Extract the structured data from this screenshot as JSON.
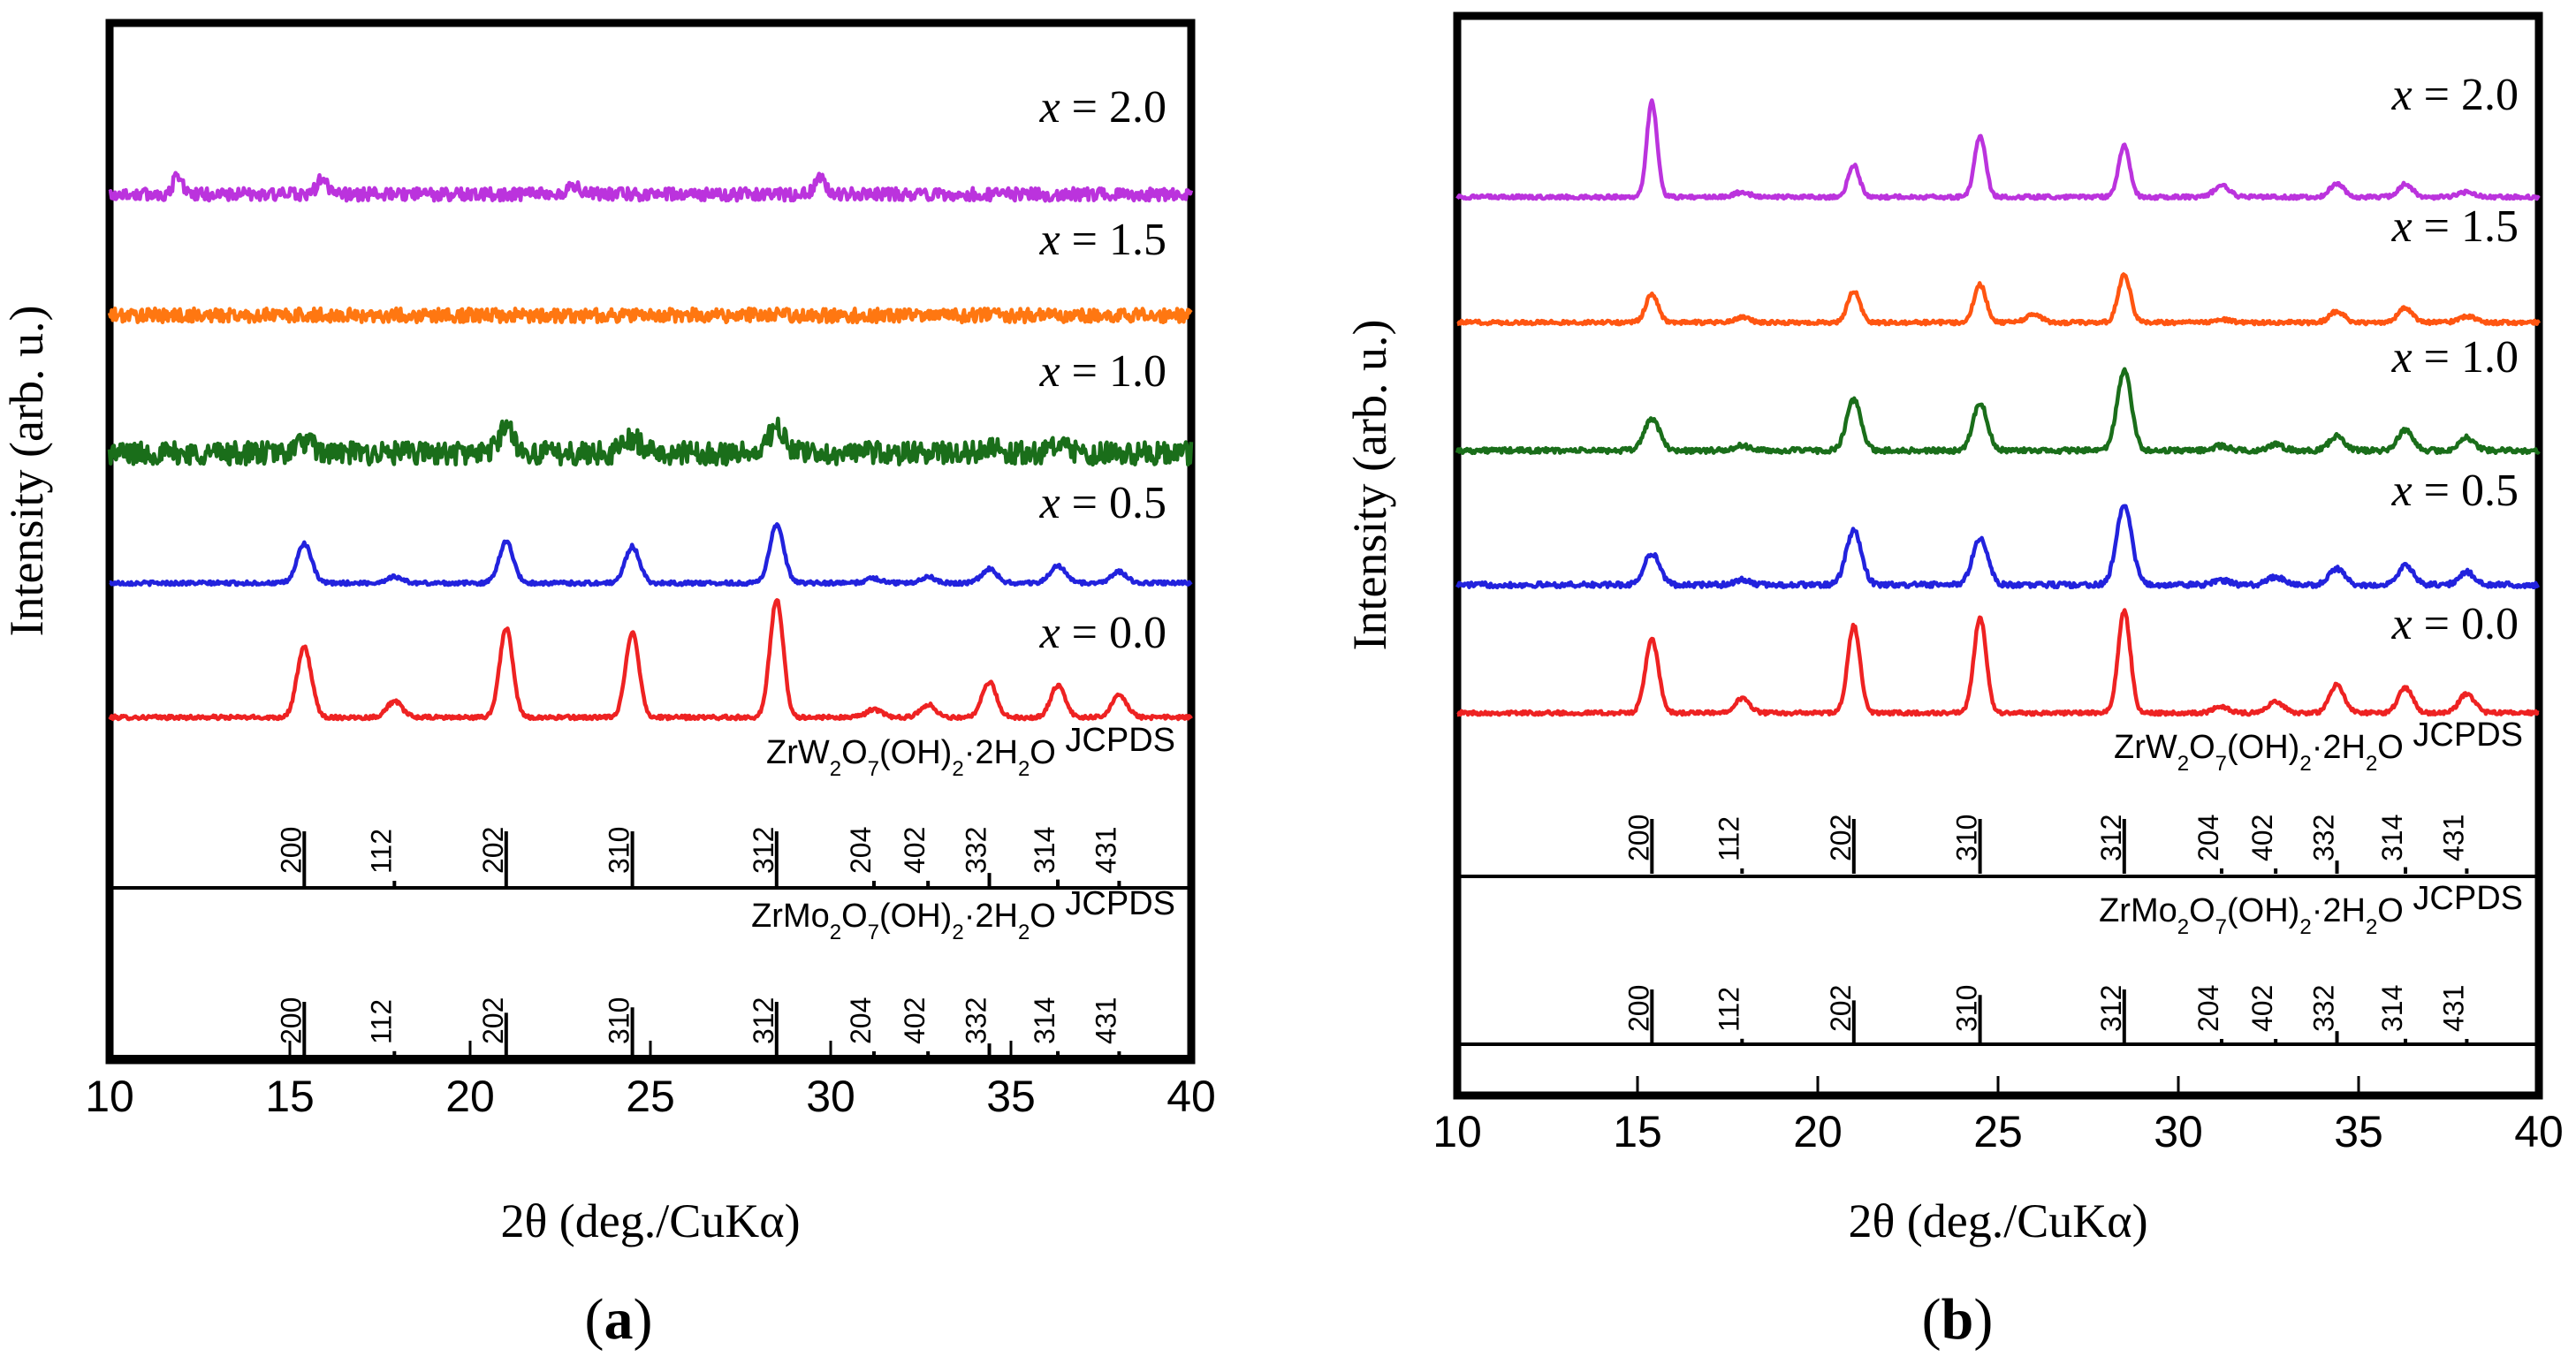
{
  "chart_data": [
    {
      "panel": "(a)",
      "type": "line",
      "xlabel": "2θ (deg./CuKα)",
      "ylabel": "Intensity (arb. u.)",
      "xlim": [
        10,
        40
      ],
      "xticks": [
        10,
        15,
        20,
        25,
        30,
        35,
        40
      ],
      "series": [
        {
          "name": "x = 0.0",
          "color": "#ee2222",
          "baseline": 0,
          "noise": 0.15,
          "peaks": [
            [
              15.4,
              4.4,
              0.28
            ],
            [
              17.9,
              1.0,
              0.3
            ],
            [
              21.0,
              5.6,
              0.26
            ],
            [
              24.5,
              5.4,
              0.26
            ],
            [
              28.5,
              7.4,
              0.26
            ],
            [
              31.2,
              0.5,
              0.3
            ],
            [
              32.7,
              0.8,
              0.3
            ],
            [
              34.4,
              2.2,
              0.28
            ],
            [
              36.3,
              2.0,
              0.28
            ],
            [
              38.0,
              1.4,
              0.3
            ]
          ]
        },
        {
          "name": "x = 0.5",
          "color": "#2222dd",
          "baseline": 1,
          "noise": 0.15,
          "peaks": [
            [
              15.4,
              2.5,
              0.28
            ],
            [
              17.9,
              0.4,
              0.3
            ],
            [
              21.0,
              2.6,
              0.28
            ],
            [
              24.5,
              2.3,
              0.28
            ],
            [
              28.5,
              3.6,
              0.28
            ],
            [
              31.2,
              0.3,
              0.3
            ],
            [
              32.7,
              0.4,
              0.3
            ],
            [
              34.4,
              0.9,
              0.3
            ],
            [
              36.3,
              1.1,
              0.3
            ],
            [
              38.0,
              0.7,
              0.3
            ]
          ]
        },
        {
          "name": "x = 1.0",
          "color": "#1a6e1a",
          "baseline": 2,
          "noise": 0.9,
          "peaks": [
            [
              15.4,
              0.7,
              0.35
            ],
            [
              21.0,
              1.6,
              0.3
            ],
            [
              24.5,
              0.9,
              0.35
            ],
            [
              28.5,
              1.6,
              0.3
            ],
            [
              34.4,
              0.5,
              0.35
            ],
            [
              36.3,
              0.4,
              0.35
            ]
          ]
        },
        {
          "name": "x = 1.5",
          "color": "#ff7711",
          "baseline": 3,
          "noise": 0.55,
          "peaks": []
        },
        {
          "name": "x = 2.0",
          "color": "#bb33dd",
          "baseline": 4,
          "noise": 0.5,
          "peaks": [
            [
              11.9,
              1.2,
              0.18
            ],
            [
              15.9,
              1.0,
              0.2
            ],
            [
              22.9,
              0.6,
              0.2
            ],
            [
              29.7,
              1.1,
              0.2
            ]
          ]
        }
      ],
      "reference_patterns": [
        {
          "title": "ZrW",
          "formula_tail": "JCPDS",
          "formula_parts": [
            "ZrW",
            "2",
            "O",
            "7",
            "(OH)",
            "2",
            "·2H",
            "2",
            "O"
          ],
          "lines": [
            {
              "hkl": "200",
              "pos": 15.4,
              "rel": 0.5
            },
            {
              "hkl": "112",
              "pos": 17.9,
              "rel": 0.04
            },
            {
              "hkl": "202",
              "pos": 21.0,
              "rel": 0.5
            },
            {
              "hkl": "310",
              "pos": 24.5,
              "rel": 0.5
            },
            {
              "hkl": "312",
              "pos": 28.5,
              "rel": 0.5
            },
            {
              "hkl": "204",
              "pos": 31.2,
              "rel": 0.04
            },
            {
              "hkl": "402",
              "pos": 32.7,
              "rel": 0.04
            },
            {
              "hkl": "332",
              "pos": 34.4,
              "rel": 0.12
            },
            {
              "hkl": "314",
              "pos": 36.3,
              "rel": 0.06
            },
            {
              "hkl": "431",
              "pos": 38.0,
              "rel": 0.04
            }
          ]
        },
        {
          "title": "ZrMo",
          "formula_tail": "JCPDS",
          "formula_parts": [
            "ZrMo",
            "2",
            "O",
            "7",
            "(OH)",
            "2",
            "·2H",
            "2",
            "O"
          ],
          "lines": [
            {
              "hkl": "200",
              "pos": 15.4,
              "rel": 0.5
            },
            {
              "hkl": "112",
              "pos": 17.9,
              "rel": 0.05
            },
            {
              "hkl": "202",
              "pos": 21.0,
              "rel": 0.4
            },
            {
              "hkl": "310",
              "pos": 24.5,
              "rel": 0.45
            },
            {
              "hkl": "312",
              "pos": 28.5,
              "rel": 0.5
            },
            {
              "hkl": "204",
              "pos": 31.2,
              "rel": 0.04
            },
            {
              "hkl": "402",
              "pos": 32.7,
              "rel": 0.04
            },
            {
              "hkl": "332",
              "pos": 34.4,
              "rel": 0.12
            },
            {
              "hkl": "314",
              "pos": 36.3,
              "rel": 0.05
            },
            {
              "hkl": "431",
              "pos": 38.0,
              "rel": 0.04
            }
          ]
        }
      ]
    },
    {
      "panel": "(b)",
      "type": "line",
      "xlabel": "2θ (deg./CuKα)",
      "ylabel": "Intensity (arb. u.)",
      "xlim": [
        10,
        40
      ],
      "xticks": [
        10,
        15,
        20,
        25,
        30,
        35,
        40
      ],
      "series": [
        {
          "name": "x = 0.0",
          "color": "#ee2222",
          "baseline": 0,
          "noise": 0.15,
          "peaks": [
            [
              15.4,
              4.6,
              0.26
            ],
            [
              17.9,
              0.9,
              0.3
            ],
            [
              21.0,
              5.5,
              0.24
            ],
            [
              24.5,
              6.0,
              0.24
            ],
            [
              28.5,
              6.4,
              0.24
            ],
            [
              31.2,
              0.4,
              0.3
            ],
            [
              32.7,
              0.7,
              0.3
            ],
            [
              34.4,
              1.8,
              0.28
            ],
            [
              36.3,
              1.6,
              0.28
            ],
            [
              38.0,
              1.2,
              0.3
            ]
          ]
        },
        {
          "name": "x = 0.5",
          "color": "#2222dd",
          "baseline": 1,
          "noise": 0.2,
          "peaks": [
            [
              15.4,
              2.0,
              0.3
            ],
            [
              17.9,
              0.3,
              0.3
            ],
            [
              21.0,
              3.4,
              0.3
            ],
            [
              24.5,
              2.9,
              0.3
            ],
            [
              28.5,
              5.0,
              0.3
            ],
            [
              31.2,
              0.3,
              0.3
            ],
            [
              32.7,
              0.5,
              0.3
            ],
            [
              34.4,
              1.0,
              0.3
            ],
            [
              36.3,
              1.2,
              0.3
            ],
            [
              38.0,
              0.8,
              0.3
            ]
          ]
        },
        {
          "name": "x = 1.0",
          "color": "#1a6e1a",
          "baseline": 2,
          "noise": 0.2,
          "peaks": [
            [
              15.4,
              2.0,
              0.3
            ],
            [
              17.9,
              0.3,
              0.3
            ],
            [
              21.0,
              3.2,
              0.28
            ],
            [
              24.5,
              3.0,
              0.28
            ],
            [
              28.5,
              5.0,
              0.28
            ],
            [
              31.2,
              0.3,
              0.3
            ],
            [
              32.7,
              0.4,
              0.3
            ],
            [
              34.4,
              0.9,
              0.3
            ],
            [
              36.3,
              1.3,
              0.3
            ],
            [
              38.0,
              0.8,
              0.3
            ]
          ]
        },
        {
          "name": "x = 1.5",
          "color": "#ff5511",
          "baseline": 3,
          "noise": 0.15,
          "peaks": [
            [
              15.4,
              1.8,
              0.24
            ],
            [
              17.9,
              0.3,
              0.3
            ],
            [
              21.0,
              2.0,
              0.24
            ],
            [
              24.5,
              2.4,
              0.24
            ],
            [
              26.0,
              0.5,
              0.3
            ],
            [
              28.5,
              3.0,
              0.24
            ],
            [
              31.2,
              0.2,
              0.3
            ],
            [
              34.4,
              0.7,
              0.28
            ],
            [
              36.3,
              0.9,
              0.28
            ],
            [
              38.0,
              0.4,
              0.3
            ]
          ]
        },
        {
          "name": "x = 2.0",
          "color": "#bb33dd",
          "baseline": 4,
          "noise": 0.15,
          "peaks": [
            [
              15.4,
              6.0,
              0.2
            ],
            [
              17.9,
              0.3,
              0.3
            ],
            [
              21.0,
              2.0,
              0.22
            ],
            [
              24.5,
              3.8,
              0.22
            ],
            [
              28.5,
              3.2,
              0.22
            ],
            [
              31.2,
              0.7,
              0.3
            ],
            [
              34.4,
              0.8,
              0.28
            ],
            [
              36.3,
              0.8,
              0.28
            ],
            [
              38.0,
              0.3,
              0.3
            ]
          ]
        }
      ],
      "reference_patterns": [
        {
          "title": "ZrW",
          "formula_tail": "JCPDS",
          "formula_parts": [
            "ZrW",
            "2",
            "O",
            "7",
            "(OH)",
            "2",
            "·2H",
            "2",
            "O"
          ],
          "lines": [
            {
              "hkl": "200",
              "pos": 15.4,
              "rel": 0.5
            },
            {
              "hkl": "112",
              "pos": 17.9,
              "rel": 0.04
            },
            {
              "hkl": "202",
              "pos": 21.0,
              "rel": 0.5
            },
            {
              "hkl": "310",
              "pos": 24.5,
              "rel": 0.5
            },
            {
              "hkl": "312",
              "pos": 28.5,
              "rel": 0.5
            },
            {
              "hkl": "204",
              "pos": 31.2,
              "rel": 0.04
            },
            {
              "hkl": "402",
              "pos": 32.7,
              "rel": 0.04
            },
            {
              "hkl": "332",
              "pos": 34.4,
              "rel": 0.12
            },
            {
              "hkl": "314",
              "pos": 36.3,
              "rel": 0.06
            },
            {
              "hkl": "431",
              "pos": 38.0,
              "rel": 0.04
            }
          ]
        },
        {
          "title": "ZrMo",
          "formula_tail": "JCPDS",
          "formula_parts": [
            "ZrMo",
            "2",
            "O",
            "7",
            "(OH)",
            "2",
            "·2H",
            "2",
            "O"
          ],
          "lines": [
            {
              "hkl": "200",
              "pos": 15.4,
              "rel": 0.5
            },
            {
              "hkl": "112",
              "pos": 17.9,
              "rel": 0.05
            },
            {
              "hkl": "202",
              "pos": 21.0,
              "rel": 0.4
            },
            {
              "hkl": "310",
              "pos": 24.5,
              "rel": 0.45
            },
            {
              "hkl": "312",
              "pos": 28.5,
              "rel": 0.5
            },
            {
              "hkl": "204",
              "pos": 31.2,
              "rel": 0.04
            },
            {
              "hkl": "402",
              "pos": 32.7,
              "rel": 0.04
            },
            {
              "hkl": "332",
              "pos": 34.4,
              "rel": 0.12
            },
            {
              "hkl": "314",
              "pos": 36.3,
              "rel": 0.05
            },
            {
              "hkl": "431",
              "pos": 38.0,
              "rel": 0.04
            }
          ]
        }
      ]
    }
  ]
}
